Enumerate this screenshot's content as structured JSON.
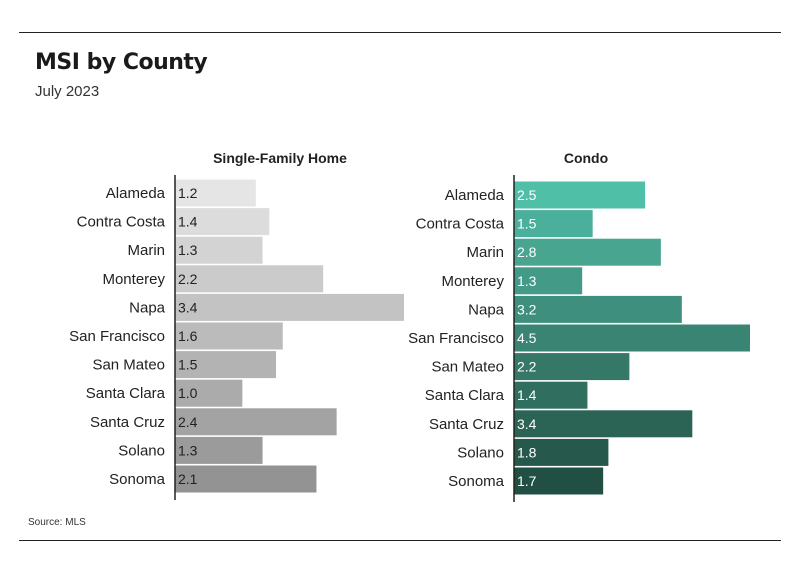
{
  "title": "MSI by County",
  "subtitle": "July 2023",
  "source": "Source: MLS",
  "chart_data": [
    {
      "type": "bar",
      "orientation": "horizontal",
      "title": "Single-Family Home",
      "categories": [
        "Alameda",
        "Contra Costa",
        "Marin",
        "Monterey",
        "Napa",
        "San Francisco",
        "San Mateo",
        "Santa Clara",
        "Santa Cruz",
        "Solano",
        "Sonoma"
      ],
      "values": [
        1.2,
        1.4,
        1.3,
        2.2,
        3.4,
        1.6,
        1.5,
        1.0,
        2.4,
        1.3,
        2.1
      ],
      "value_labels": [
        "1.2",
        "1.4",
        "1.3",
        "2.2",
        "3.4",
        "1.6",
        "1.5",
        "1.0",
        "2.4",
        "1.3",
        "2.1"
      ],
      "colors": [
        "#e5e5e5",
        "#dcdcdc",
        "#d3d3d3",
        "#cbcbcb",
        "#c3c3c3",
        "#bbbbbb",
        "#b3b3b3",
        "#ababab",
        "#a3a3a3",
        "#9b9b9b",
        "#939393"
      ],
      "label_color": "#222222",
      "xlim": [
        0,
        3.4
      ],
      "grid": false
    },
    {
      "type": "bar",
      "orientation": "horizontal",
      "title": "Condo",
      "categories": [
        "Alameda",
        "Contra Costa",
        "Marin",
        "Monterey",
        "Napa",
        "San Francisco",
        "San Mateo",
        "Santa Clara",
        "Santa Cruz",
        "Solano",
        "Sonoma"
      ],
      "values": [
        2.5,
        1.5,
        2.8,
        1.3,
        3.2,
        4.5,
        2.2,
        1.4,
        3.4,
        1.8,
        1.7
      ],
      "value_labels": [
        "2.5",
        "1.5",
        "2.8",
        "1.3",
        "3.2",
        "4.5",
        "2.2",
        "1.4",
        "3.4",
        "1.8",
        "1.7"
      ],
      "colors": [
        "#4fbfa8",
        "#4bb09b",
        "#47a590",
        "#439a87",
        "#3f8f7e",
        "#3a8473",
        "#357868",
        "#306e5f",
        "#2b6355",
        "#26594c",
        "#224f44"
      ],
      "label_color": "#ffffff",
      "xlim": [
        0,
        4.5
      ],
      "grid": false
    }
  ]
}
